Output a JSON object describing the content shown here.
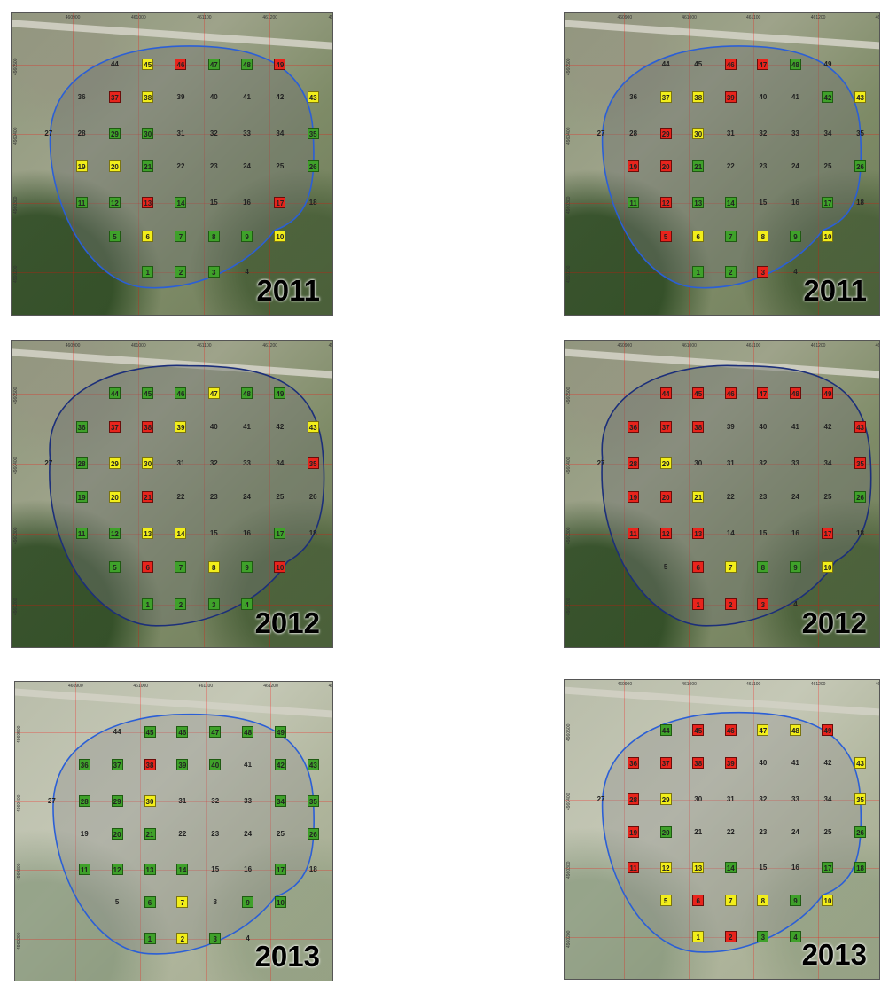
{
  "colors": {
    "boundary": "#2b5fd6",
    "boundary_2012": "#1c2f7a",
    "green": "#3fa12a",
    "yellow": "#f2ee1a",
    "red": "#e8241c"
  },
  "ticks": {
    "x_top": [
      "460900",
      "461000",
      "461100",
      "461200",
      "461300"
    ],
    "y_side": [
      "4960500",
      "4960400",
      "4960300",
      "4960200"
    ]
  },
  "panels": [
    {
      "year": "2011",
      "pale": false,
      "boundary": "blue",
      "cells": {
        "44": "plain",
        "45": "yellow",
        "46": "red",
        "47": "green",
        "48": "green",
        "49": "red",
        "36": "plain",
        "37": "red",
        "38": "yellow",
        "39": "plain",
        "40": "plain",
        "41": "plain",
        "42": "plain",
        "43": "yellow",
        "27": "plain",
        "28": "plain",
        "29": "green",
        "30": "green",
        "31": "plain",
        "32": "plain",
        "33": "plain",
        "34": "plain",
        "35": "green",
        "19": "yellow",
        "20": "yellow",
        "21": "green",
        "22": "plain",
        "23": "plain",
        "24": "plain",
        "25": "plain",
        "26": "green",
        "11": "green",
        "12": "green",
        "13": "red",
        "14": "green",
        "15": "plain",
        "16": "plain",
        "17": "red",
        "18": "plain",
        "5": "green",
        "6": "yellow",
        "7": "green",
        "8": "green",
        "9": "green",
        "10": "yellow",
        "1": "green",
        "2": "green",
        "3": "green",
        "4": "plain"
      }
    },
    {
      "year": "2011",
      "pale": false,
      "boundary": "blue",
      "cells": {
        "44": "plain",
        "45": "plain",
        "46": "red",
        "47": "red",
        "48": "green",
        "49": "plain",
        "36": "plain",
        "37": "yellow",
        "38": "yellow",
        "39": "red",
        "40": "plain",
        "41": "plain",
        "42": "green",
        "43": "yellow",
        "27": "plain",
        "28": "plain",
        "29": "red",
        "30": "yellow",
        "31": "plain",
        "32": "plain",
        "33": "plain",
        "34": "plain",
        "35": "plain",
        "19": "red",
        "20": "red",
        "21": "green",
        "22": "plain",
        "23": "plain",
        "24": "plain",
        "25": "plain",
        "26": "green",
        "11": "green",
        "12": "red",
        "13": "green",
        "14": "green",
        "15": "plain",
        "16": "plain",
        "17": "green",
        "18": "plain",
        "5": "red",
        "6": "yellow",
        "7": "green",
        "8": "yellow",
        "9": "green",
        "10": "yellow",
        "1": "green",
        "2": "green",
        "3": "red",
        "4": "plain"
      }
    },
    {
      "year": "2012",
      "pale": false,
      "boundary": "navy",
      "cells": {
        "44": "green",
        "45": "green",
        "46": "green",
        "47": "yellow",
        "48": "green",
        "49": "green",
        "36": "green",
        "37": "red",
        "38": "red",
        "39": "yellow",
        "40": "plain",
        "41": "plain",
        "42": "plain",
        "43": "yellow",
        "27": "plain",
        "28": "green",
        "29": "yellow",
        "30": "yellow",
        "31": "plain",
        "32": "plain",
        "33": "plain",
        "34": "plain",
        "35": "red",
        "19": "green",
        "20": "yellow",
        "21": "red",
        "22": "plain",
        "23": "plain",
        "24": "plain",
        "25": "plain",
        "26": "plain",
        "11": "green",
        "12": "green",
        "13": "yellow",
        "14": "yellow",
        "15": "plain",
        "16": "plain",
        "17": "green",
        "18": "plain",
        "5": "green",
        "6": "red",
        "7": "green",
        "8": "yellow",
        "9": "green",
        "10": "red",
        "1": "green",
        "2": "green",
        "3": "green",
        "4": "green"
      }
    },
    {
      "year": "2012",
      "pale": false,
      "boundary": "navy",
      "cells": {
        "44": "red",
        "45": "red",
        "46": "red",
        "47": "red",
        "48": "red",
        "49": "red",
        "36": "red",
        "37": "red",
        "38": "red",
        "39": "plain",
        "40": "plain",
        "41": "plain",
        "42": "plain",
        "43": "red",
        "27": "plain",
        "28": "red",
        "29": "yellow",
        "30": "plain",
        "31": "plain",
        "32": "plain",
        "33": "plain",
        "34": "plain",
        "35": "red",
        "19": "red",
        "20": "red",
        "21": "yellow",
        "22": "plain",
        "23": "plain",
        "24": "plain",
        "25": "plain",
        "26": "green",
        "11": "red",
        "12": "red",
        "13": "red",
        "14": "plain",
        "15": "plain",
        "16": "plain",
        "17": "red",
        "18": "plain",
        "5": "plain",
        "6": "red",
        "7": "yellow",
        "8": "green",
        "9": "green",
        "10": "yellow",
        "1": "red",
        "2": "red",
        "3": "red",
        "4": "plain"
      }
    },
    {
      "year": "2013",
      "pale": true,
      "boundary": "blue",
      "cells": {
        "44": "plain",
        "45": "green",
        "46": "green",
        "47": "green",
        "48": "green",
        "49": "green",
        "36": "green",
        "37": "green",
        "38": "red",
        "39": "green",
        "40": "green",
        "41": "plain",
        "42": "green",
        "43": "green",
        "27": "plain",
        "28": "green",
        "29": "green",
        "30": "yellow",
        "31": "plain",
        "32": "plain",
        "33": "plain",
        "34": "green",
        "35": "green",
        "19": "plain",
        "20": "green",
        "21": "green",
        "22": "plain",
        "23": "plain",
        "24": "plain",
        "25": "plain",
        "26": "green",
        "11": "green",
        "12": "green",
        "13": "green",
        "14": "green",
        "15": "plain",
        "16": "plain",
        "17": "green",
        "18": "plain",
        "5": "plain",
        "6": "green",
        "7": "yellow",
        "8": "plain",
        "9": "green",
        "10": "green",
        "1": "green",
        "2": "yellow",
        "3": "green",
        "4": "plain"
      }
    },
    {
      "year": "2013",
      "pale": true,
      "boundary": "blue",
      "cells": {
        "44": "green",
        "45": "red",
        "46": "red",
        "47": "yellow",
        "48": "yellow",
        "49": "red",
        "36": "red",
        "37": "red",
        "38": "red",
        "39": "red",
        "40": "plain",
        "41": "plain",
        "42": "plain",
        "43": "yellow",
        "27": "plain",
        "28": "red",
        "29": "yellow",
        "30": "plain",
        "31": "plain",
        "32": "plain",
        "33": "plain",
        "34": "plain",
        "35": "yellow",
        "19": "red",
        "20": "green",
        "21": "plain",
        "22": "plain",
        "23": "plain",
        "24": "plain",
        "25": "plain",
        "26": "green",
        "11": "red",
        "12": "yellow",
        "13": "yellow",
        "14": "green",
        "15": "plain",
        "16": "plain",
        "17": "green",
        "18": "green",
        "5": "yellow",
        "6": "red",
        "7": "yellow",
        "8": "yellow",
        "9": "green",
        "10": "yellow",
        "1": "yellow",
        "2": "red",
        "3": "green",
        "4": "green"
      }
    }
  ]
}
